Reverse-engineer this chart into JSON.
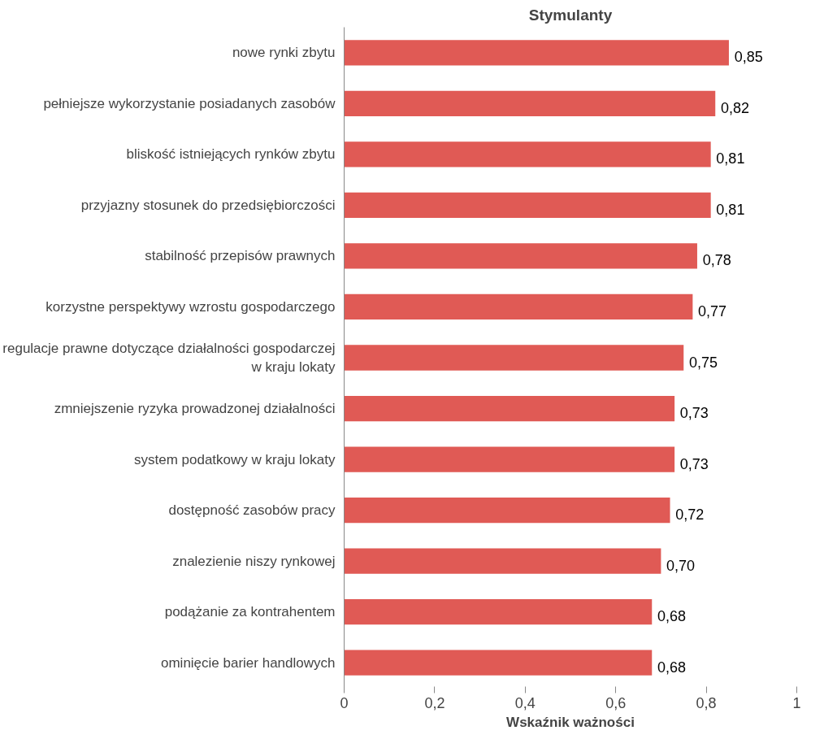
{
  "chart_data": {
    "type": "bar",
    "orientation": "horizontal",
    "title": "Stymulanty",
    "xlabel": "Wskaźnik ważności",
    "categories": [
      "nowe rynki zbytu",
      "pełniejsze wykorzystanie posiadanych zasobów",
      "bliskość istniejących rynków zbytu",
      "przyjazny stosunek do przedsiębiorczości",
      "stabilność przepisów prawnych",
      "korzystne perspektywy wzrostu gospodarczego",
      "regulacje prawne dotyczące działalności gospodarczej\nw kraju lokaty",
      "zmniejszenie ryzyka prowadzonej działalności",
      "system podatkowy w kraju lokaty",
      "dostępność zasobów pracy",
      "znalezienie niszy rynkowej",
      "podążanie za kontrahentem",
      "ominięcie barier handlowych"
    ],
    "values": [
      0.85,
      0.82,
      0.81,
      0.81,
      0.78,
      0.77,
      0.75,
      0.73,
      0.73,
      0.72,
      0.7,
      0.68,
      0.68
    ],
    "value_labels": [
      "0,85",
      "0,82",
      "0,81",
      "0,81",
      "0,78",
      "0,77",
      "0,75",
      "0,73",
      "0,73",
      "0,72",
      "0,70",
      "0,68",
      "0,68"
    ],
    "color": "#e05a55",
    "xlim": [
      0,
      1
    ],
    "xticks": [
      0,
      {
        "value": 0.2,
        "label": "0,2"
      },
      {
        "value": 0.4,
        "label": "0,4"
      },
      {
        "value": 0.6,
        "label": "0,6"
      },
      {
        "value": 0.8,
        "label": "0,8"
      },
      1
    ],
    "grid": false
  }
}
